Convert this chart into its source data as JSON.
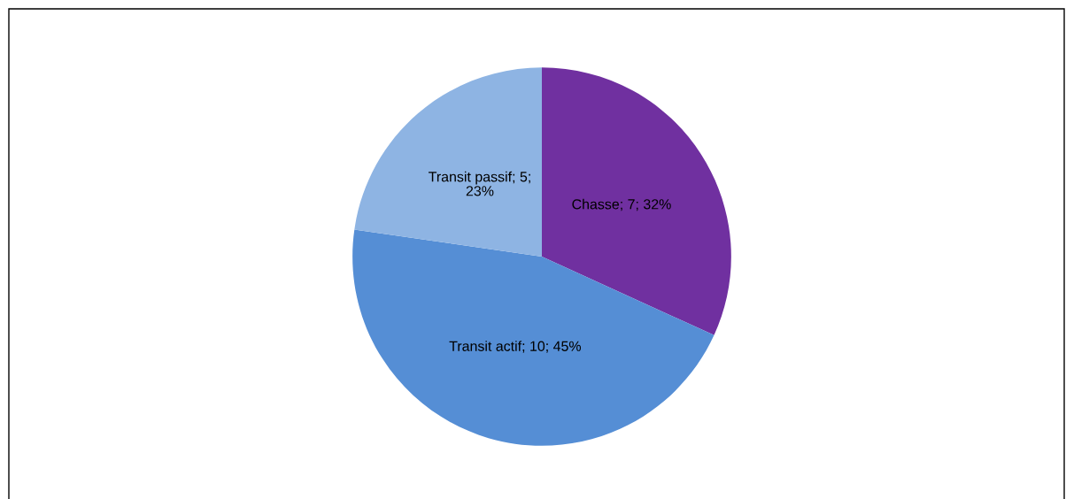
{
  "chart_data": {
    "type": "pie",
    "categories": [
      "Chasse; 7; 32%",
      "Transit actif; 10; 45%",
      "Transit passif; 5; 23%"
    ],
    "values": [
      7,
      10,
      5
    ],
    "colors": [
      "#7030a0",
      "#558ed5",
      "#8eb4e3"
    ]
  }
}
